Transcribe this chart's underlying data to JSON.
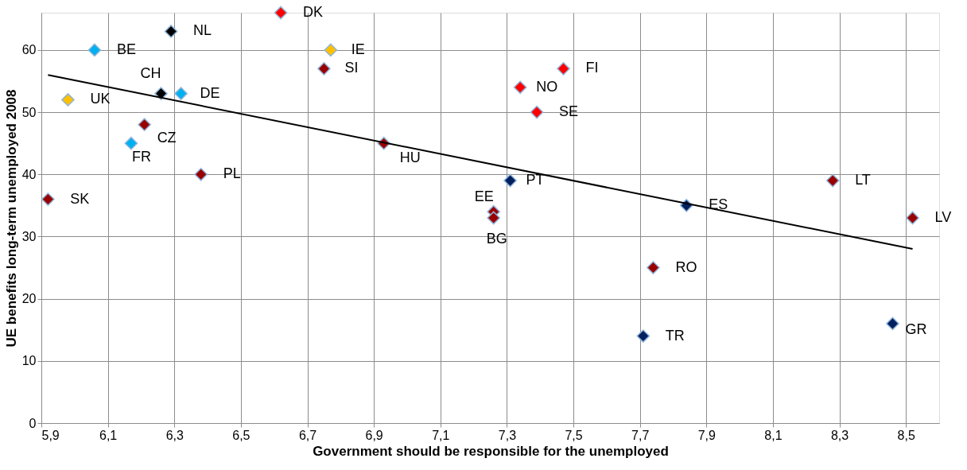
{
  "chart_data": {
    "type": "scatter",
    "xlabel": "Government should be responsible for the unemployed",
    "ylabel": "UE benefits long-term unemployed 2008",
    "xlim": [
      5.9,
      8.6
    ],
    "ylim": [
      0,
      66
    ],
    "xticks": [
      {
        "value": 5.9,
        "label": "5,9"
      },
      {
        "value": 6.1,
        "label": "6,1"
      },
      {
        "value": 6.3,
        "label": "6,3"
      },
      {
        "value": 6.5,
        "label": "6,5"
      },
      {
        "value": 6.7,
        "label": "6,7"
      },
      {
        "value": 6.9,
        "label": "6,9"
      },
      {
        "value": 7.1,
        "label": "7,1"
      },
      {
        "value": 7.3,
        "label": "7,3"
      },
      {
        "value": 7.5,
        "label": "7,5"
      },
      {
        "value": 7.7,
        "label": "7,7"
      },
      {
        "value": 7.9,
        "label": "7,9"
      },
      {
        "value": 8.1,
        "label": "8,1"
      },
      {
        "value": 8.3,
        "label": "8,3"
      },
      {
        "value": 8.5,
        "label": "8,5"
      }
    ],
    "yticks": [
      0,
      10,
      20,
      30,
      40,
      50,
      60
    ],
    "grid": true,
    "series": [
      {
        "marker": "diamond",
        "x": [
          5.92,
          6.06,
          5.98,
          6.29,
          6.26,
          6.32,
          6.21,
          6.17,
          6.38,
          6.62,
          6.77,
          6.75,
          6.93,
          7.26,
          7.26,
          7.34,
          7.47,
          7.39,
          7.31,
          7.84,
          8.28,
          8.52,
          7.74,
          7.71,
          8.46
        ],
        "values": [
          36,
          60,
          52,
          63,
          53,
          53,
          48,
          45,
          40,
          66,
          60,
          57,
          45,
          34,
          33,
          54,
          57,
          50,
          39,
          35,
          39,
          33,
          25,
          14,
          16
        ],
        "colors": [
          "#990000",
          "#00b0f0",
          "#ffc000",
          "#000000",
          "#000000",
          "#00b0f0",
          "#990000",
          "#00b0f0",
          "#990000",
          "#ff0000",
          "#ffc000",
          "#990000",
          "#990000",
          "#990000",
          "#990000",
          "#ff0000",
          "#ff0000",
          "#ff0000",
          "#002060",
          "#002060",
          "#990000",
          "#990000",
          "#990000",
          "#002060",
          "#002060"
        ]
      },
      {
        "type": "line",
        "x": [
          5.92,
          8.52
        ],
        "values": [
          56,
          28
        ],
        "color": "#000000",
        "line_style": "solid"
      }
    ],
    "annotations": [
      {
        "text": "SK",
        "x": 5.92,
        "y": 36
      },
      {
        "text": "BE",
        "x": 6.06,
        "y": 60
      },
      {
        "text": "UK",
        "x": 5.98,
        "y": 52
      },
      {
        "text": "NL",
        "x": 6.29,
        "y": 63
      },
      {
        "text": "CH",
        "x": 6.26,
        "y": 53
      },
      {
        "text": "DE",
        "x": 6.32,
        "y": 53
      },
      {
        "text": "CZ",
        "x": 6.21,
        "y": 48
      },
      {
        "text": "FR",
        "x": 6.17,
        "y": 45
      },
      {
        "text": "PL",
        "x": 6.38,
        "y": 40
      },
      {
        "text": "DK",
        "x": 6.62,
        "y": 66
      },
      {
        "text": "IE",
        "x": 6.77,
        "y": 60
      },
      {
        "text": "SI",
        "x": 6.75,
        "y": 57
      },
      {
        "text": "HU",
        "x": 6.93,
        "y": 45
      },
      {
        "text": "EE",
        "x": 7.26,
        "y": 34
      },
      {
        "text": "BG",
        "x": 7.26,
        "y": 33
      },
      {
        "text": "NO",
        "x": 7.34,
        "y": 54
      },
      {
        "text": "FI",
        "x": 7.47,
        "y": 57
      },
      {
        "text": "SE",
        "x": 7.39,
        "y": 50
      },
      {
        "text": "PT",
        "x": 7.31,
        "y": 39
      },
      {
        "text": "ES",
        "x": 7.84,
        "y": 35
      },
      {
        "text": "LT",
        "x": 8.28,
        "y": 39
      },
      {
        "text": "LV",
        "x": 8.52,
        "y": 33
      },
      {
        "text": "RO",
        "x": 7.74,
        "y": 25
      },
      {
        "text": "TR",
        "x": 7.71,
        "y": 14
      },
      {
        "text": "GR",
        "x": 8.46,
        "y": 16
      }
    ]
  }
}
